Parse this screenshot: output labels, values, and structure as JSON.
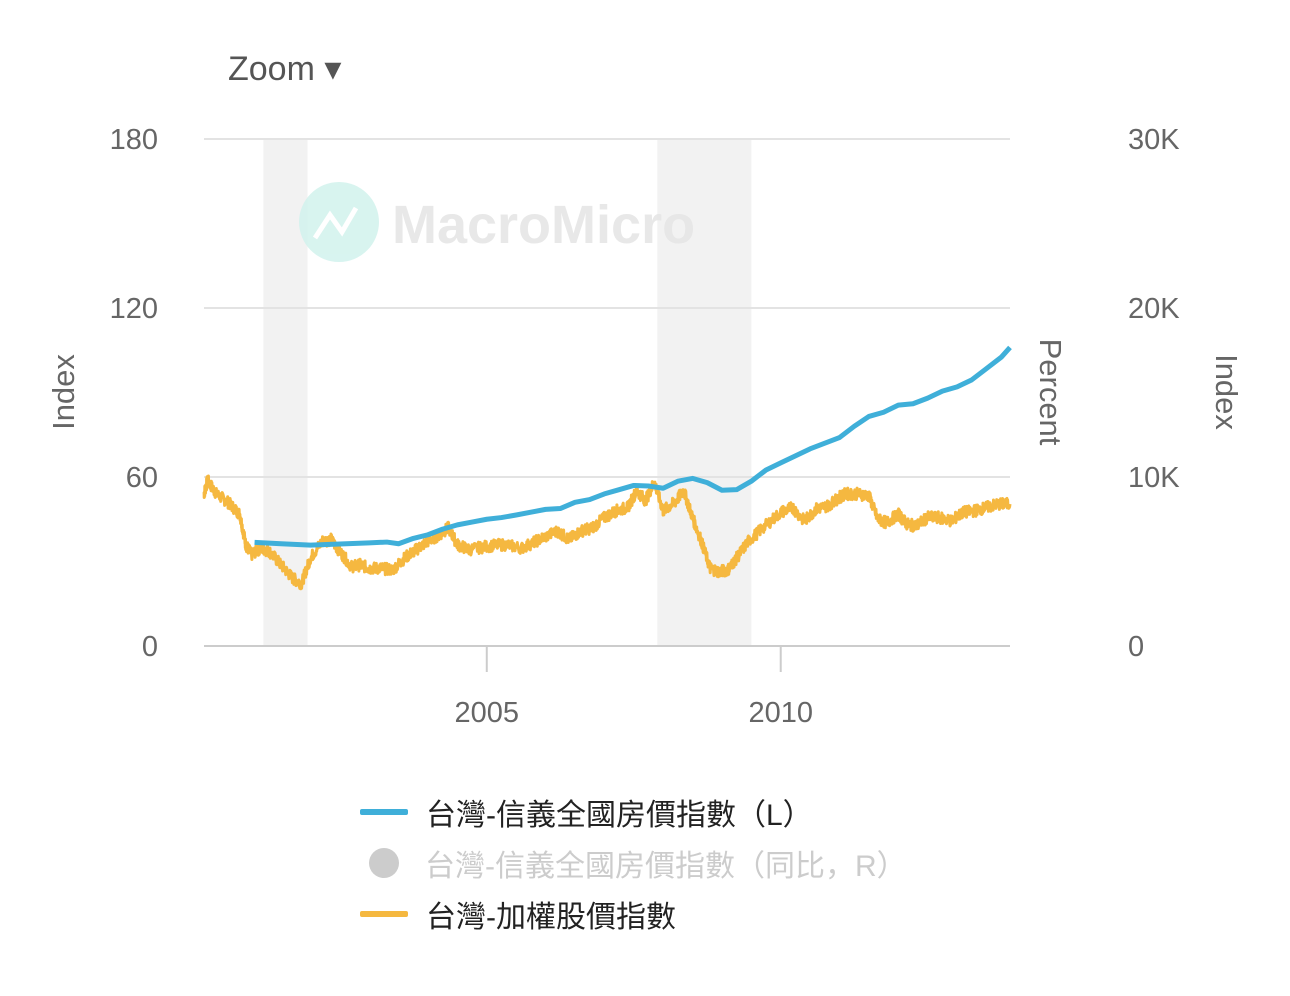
{
  "zoom_label": "Zoom ▾",
  "watermark": "MacroMicro",
  "chart_data": {
    "type": "line",
    "x_range": [
      2000.19,
      2013.9
    ],
    "x_ticks": [
      {
        "value": 2005,
        "label": "2005"
      },
      {
        "value": 2010,
        "label": "2010"
      }
    ],
    "left_axis": {
      "label": "Index",
      "range": [
        0,
        180
      ],
      "ticks": [
        {
          "value": 0,
          "label": "0"
        },
        {
          "value": 60,
          "label": "60"
        },
        {
          "value": 120,
          "label": "120"
        },
        {
          "value": 180,
          "label": "180"
        }
      ]
    },
    "right_axis_1": {
      "label": "Percent"
    },
    "right_axis_2": {
      "label": "Index",
      "range": [
        0,
        30000
      ],
      "ticks": [
        {
          "value": 0,
          "label": "0"
        },
        {
          "value": 10000,
          "label": "10K"
        },
        {
          "value": 20000,
          "label": "20K"
        },
        {
          "value": 30000,
          "label": "30K"
        }
      ]
    },
    "grid": true,
    "recession_bands": [
      [
        2001.2,
        2001.95
      ],
      [
        2007.9,
        2009.5
      ]
    ],
    "legend_position": "bottom",
    "series": [
      {
        "name": "台灣-信義全國房價指數（L）",
        "axis": "left",
        "color": "#3fafd9",
        "visible": true,
        "x": [
          2001.05,
          2001.5,
          2002.0,
          2002.5,
          2003.0,
          2003.3,
          2003.5,
          2003.75,
          2004.0,
          2004.25,
          2004.5,
          2004.75,
          2005.0,
          2005.25,
          2005.5,
          2005.75,
          2006.0,
          2006.25,
          2006.5,
          2006.75,
          2007.0,
          2007.25,
          2007.5,
          2007.75,
          2008.0,
          2008.25,
          2008.5,
          2008.75,
          2009.0,
          2009.25,
          2009.5,
          2009.75,
          2010.0,
          2010.25,
          2010.5,
          2010.75,
          2011.0,
          2011.25,
          2011.5,
          2011.75,
          2012.0,
          2012.25,
          2012.5,
          2012.75,
          2013.0,
          2013.25,
          2013.5,
          2013.75,
          2013.9
        ],
        "values": [
          36.8,
          36.3,
          35.8,
          36.2,
          36.6,
          36.9,
          36.3,
          38.2,
          39.5,
          41.5,
          43.0,
          44.0,
          45.0,
          45.6,
          46.5,
          47.5,
          48.5,
          48.8,
          51.0,
          52.0,
          54.0,
          55.5,
          57.0,
          56.8,
          56.0,
          58.5,
          59.5,
          58.0,
          55.3,
          55.5,
          58.5,
          62.5,
          65.0,
          67.5,
          70.0,
          72.0,
          74.0,
          78.0,
          81.5,
          83.0,
          85.5,
          86.0,
          88.0,
          90.5,
          92.0,
          94.5,
          98.5,
          102.5,
          106.0
        ]
      },
      {
        "name": "台灣-信義全國房價指數（同比，R）",
        "axis": "right_1",
        "color": "#cccccc",
        "visible": false,
        "values": []
      },
      {
        "name": "台灣-加權股價指數",
        "axis": "right_2",
        "color": "#f5b840",
        "visible": true,
        "x": [
          2000.19,
          2000.25,
          2000.4,
          2000.6,
          2000.8,
          2000.9,
          2001.0,
          2001.15,
          2001.3,
          2001.5,
          2001.7,
          2001.85,
          2002.0,
          2002.2,
          2002.35,
          2002.5,
          2002.7,
          2002.85,
          2003.0,
          2003.2,
          2003.4,
          2003.6,
          2003.8,
          2004.0,
          2004.2,
          2004.35,
          2004.5,
          2004.7,
          2005.0,
          2005.3,
          2005.6,
          2005.9,
          2006.2,
          2006.4,
          2006.6,
          2006.8,
          2007.0,
          2007.2,
          2007.4,
          2007.55,
          2007.7,
          2007.85,
          2008.0,
          2008.2,
          2008.35,
          2008.5,
          2008.65,
          2008.8,
          2008.95,
          2009.1,
          2009.25,
          2009.45,
          2009.7,
          2010.0,
          2010.2,
          2010.4,
          2010.6,
          2010.8,
          2011.0,
          2011.1,
          2011.3,
          2011.5,
          2011.65,
          2011.8,
          2012.0,
          2012.15,
          2012.3,
          2012.5,
          2012.7,
          2012.9,
          2013.1,
          2013.3,
          2013.5,
          2013.7,
          2013.9
        ],
        "values": [
          9000,
          9800,
          9000,
          8500,
          7800,
          6000,
          5400,
          5800,
          5600,
          4800,
          4000,
          3700,
          5200,
          6200,
          6300,
          5600,
          4700,
          4800,
          4600,
          4600,
          4500,
          5200,
          5700,
          6200,
          6600,
          7000,
          6000,
          5700,
          5900,
          6000,
          5800,
          6300,
          6800,
          6300,
          6800,
          7000,
          7600,
          8000,
          8200,
          9200,
          8600,
          9700,
          8000,
          8500,
          9200,
          7600,
          6200,
          4600,
          4400,
          4500,
          5200,
          6200,
          7000,
          7900,
          8200,
          7400,
          8100,
          8300,
          8800,
          9000,
          9000,
          8900,
          7500,
          7300,
          7800,
          7200,
          7100,
          7600,
          7600,
          7400,
          7900,
          8000,
          8200,
          8400,
          8400
        ]
      }
    ]
  }
}
